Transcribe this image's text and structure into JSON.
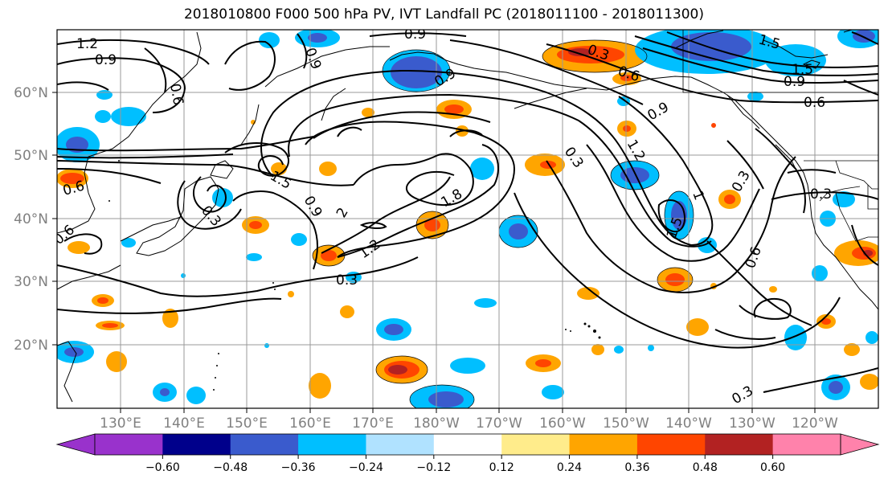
{
  "title": "2018010800 F000 500 hPa PV, IVT Landfall PC (2018011100 - 2018011300)",
  "lat_labels": [
    "60°N",
    "50°N",
    "40°N",
    "30°N",
    "20°N"
  ],
  "lon_labels": [
    "130°E",
    "140°E",
    "150°E",
    "160°E",
    "170°E",
    "180°W",
    "170°W",
    "160°W",
    "150°W",
    "140°W",
    "130°W",
    "120°W"
  ],
  "colorbar": {
    "colors": [
      "#9932cc",
      "#00008b",
      "#3a5bcd",
      "#00bfff",
      "#b0e2ff",
      "#ffffff",
      "#ffec8b",
      "#ffa500",
      "#ff4500",
      "#b22222",
      "#ff82ab"
    ],
    "tick_labels": [
      "−0.60",
      "−0.48",
      "−0.36",
      "−0.24",
      "−0.12",
      "0.12",
      "0.24",
      "0.36",
      "0.48",
      "0.60"
    ]
  },
  "contour_labels": [
    "1.2",
    "0.9",
    "0.6",
    "0.9",
    "0.9",
    "0.9",
    "0.3",
    "0.6",
    "1.5",
    "0.9",
    "1.5",
    "0.6",
    "0.9",
    "1.2",
    "0.3",
    "1.5",
    "1.8",
    "2",
    "0.9",
    "0.3",
    "1.2",
    "0.3",
    "0.3",
    "1.5",
    "1",
    "0.6",
    "0.3",
    "0.3",
    "0.6",
    "0.6"
  ]
}
